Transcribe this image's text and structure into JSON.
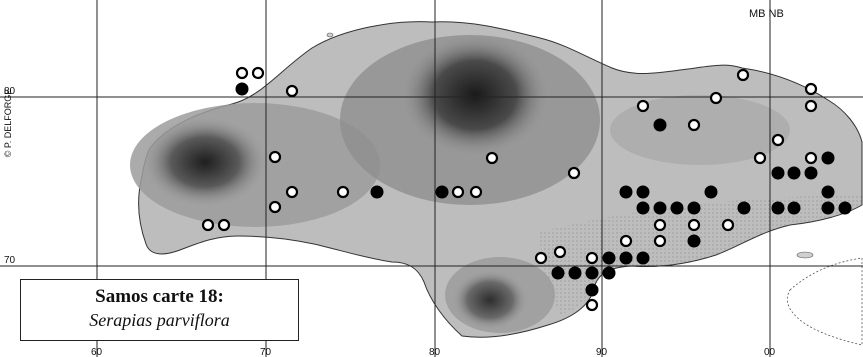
{
  "map": {
    "utm_zone_label": "MB NB",
    "copyright": "© P. DELFORGE",
    "legend": {
      "title": "Samos carte 18:",
      "species": "Serapias parviflora"
    },
    "grid": {
      "easting_labels": [
        "60",
        "70",
        "80",
        "90",
        "00"
      ],
      "northing_labels": [
        "80",
        "70"
      ]
    },
    "colors": {
      "sea": "#ffffff",
      "lowland": "#bdbdbd",
      "hills": "#8a8a8a",
      "mountain": "#2b2b2b",
      "record_old": "#ffffff",
      "record_recent": "#000000"
    },
    "records_open": [
      [
        242,
        73
      ],
      [
        258,
        73
      ],
      [
        292,
        91
      ],
      [
        275,
        157
      ],
      [
        292,
        192
      ],
      [
        275,
        207
      ],
      [
        343,
        192
      ],
      [
        208,
        225
      ],
      [
        224,
        225
      ],
      [
        458,
        192
      ],
      [
        476,
        192
      ],
      [
        492,
        158
      ],
      [
        574,
        173
      ],
      [
        560,
        252
      ],
      [
        592,
        258
      ],
      [
        592,
        305
      ],
      [
        643,
        106
      ],
      [
        694,
        125
      ],
      [
        716,
        98
      ],
      [
        743,
        75
      ],
      [
        811,
        89
      ],
      [
        811,
        106
      ],
      [
        778,
        140
      ],
      [
        760,
        158
      ],
      [
        811,
        158
      ],
      [
        778,
        173
      ],
      [
        626,
        241
      ],
      [
        660,
        225
      ],
      [
        660,
        241
      ],
      [
        694,
        225
      ],
      [
        728,
        225
      ],
      [
        541,
        258
      ]
    ],
    "records_filled": [
      [
        242,
        89
      ],
      [
        660,
        125
      ],
      [
        828,
        158
      ],
      [
        778,
        173
      ],
      [
        794,
        173
      ],
      [
        811,
        173
      ],
      [
        828,
        192
      ],
      [
        377,
        192
      ],
      [
        442,
        192
      ],
      [
        626,
        192
      ],
      [
        643,
        192
      ],
      [
        711,
        192
      ],
      [
        643,
        208
      ],
      [
        660,
        208
      ],
      [
        677,
        208
      ],
      [
        694,
        208
      ],
      [
        744,
        208
      ],
      [
        778,
        208
      ],
      [
        794,
        208
      ],
      [
        828,
        208
      ],
      [
        845,
        208
      ],
      [
        694,
        241
      ],
      [
        609,
        258
      ],
      [
        626,
        258
      ],
      [
        643,
        258
      ],
      [
        558,
        273
      ],
      [
        575,
        273
      ],
      [
        592,
        273
      ],
      [
        609,
        273
      ],
      [
        592,
        290
      ]
    ]
  }
}
